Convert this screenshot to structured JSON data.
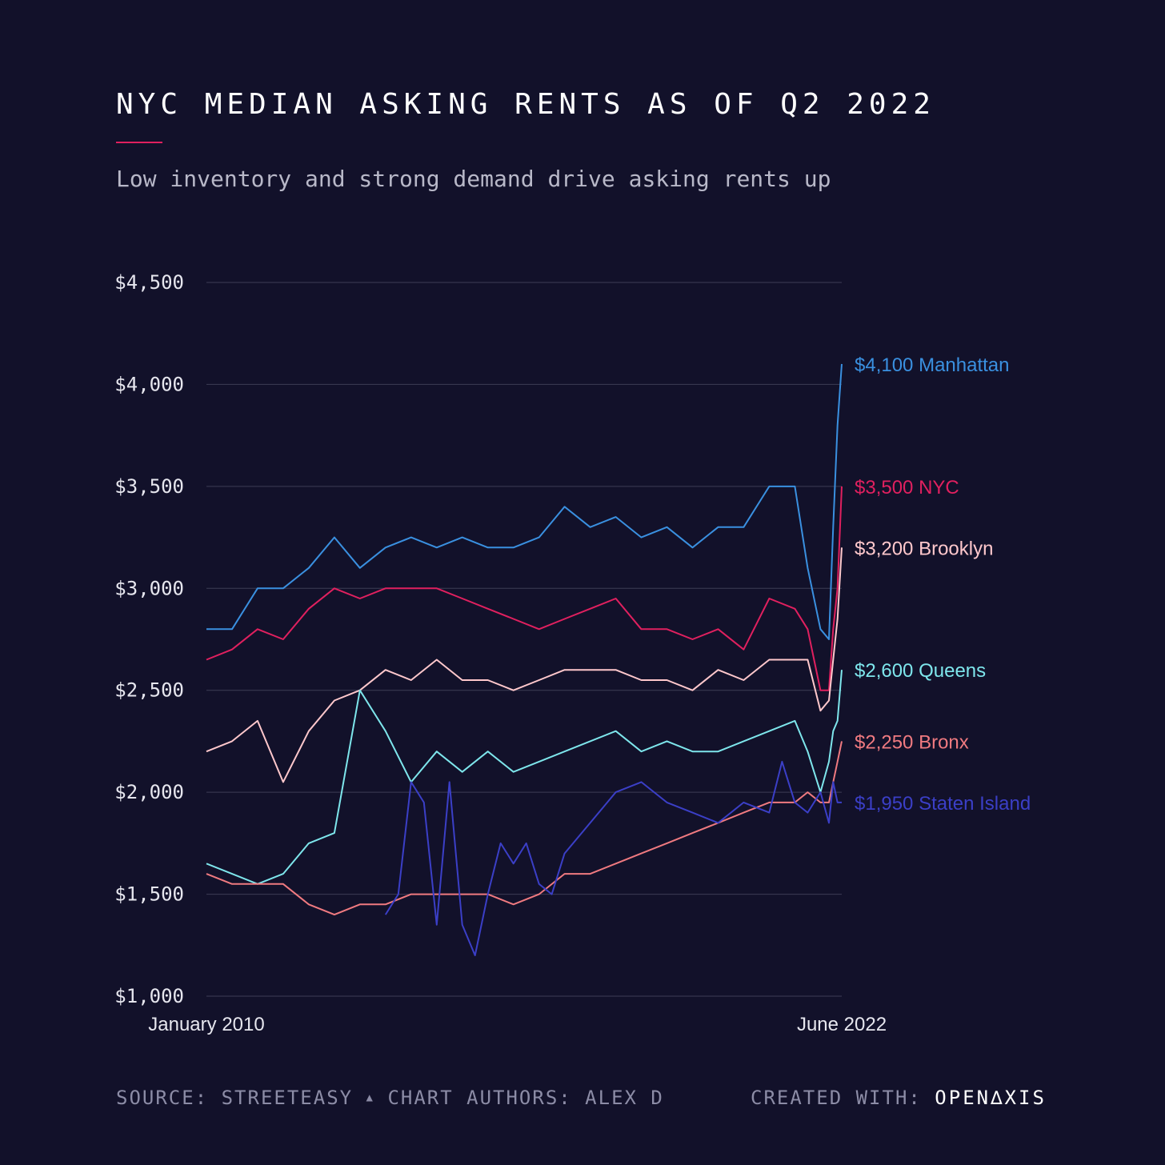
{
  "header": {
    "title": "NYC MEDIAN ASKING RENTS AS OF Q2 2022",
    "subtitle": "Low inventory and strong demand drive asking rents up"
  },
  "footer": {
    "source": "SOURCE: STREETEASY",
    "separator": "▲",
    "authors": "CHART AUTHORS: ALEX D",
    "created_label": "CREATED WITH:",
    "brand": "OPEN∆XIS"
  },
  "colors": {
    "background": "#12112a",
    "grid": "#3d3d55",
    "tick_text": "#e6e6ee",
    "accent": "#e0205f"
  },
  "chart_data": {
    "type": "line",
    "x_tick_labels": [
      "January 2010",
      "June 2022"
    ],
    "x_range_months": [
      "2010-01",
      "2022-06"
    ],
    "ylim": [
      1000,
      4500
    ],
    "yticks": [
      1000,
      1500,
      2000,
      2500,
      3000,
      3500,
      4000,
      4500
    ],
    "ytick_labels": [
      "$1,000",
      "$1,500",
      "$2,000",
      "$2,500",
      "$3,000",
      "$3,500",
      "$4,000",
      "$4,500"
    ],
    "grid": "horizontal",
    "legend": "end-of-line labels",
    "series": [
      {
        "name": "Manhattan",
        "end_label": "$4,100 Manhattan",
        "color": "#3a90e0",
        "points": [
          [
            "2010-01",
            2800
          ],
          [
            "2010-07",
            2800
          ],
          [
            "2011-01",
            3000
          ],
          [
            "2011-07",
            3000
          ],
          [
            "2012-01",
            3100
          ],
          [
            "2012-07",
            3250
          ],
          [
            "2013-01",
            3100
          ],
          [
            "2013-07",
            3200
          ],
          [
            "2014-01",
            3250
          ],
          [
            "2014-07",
            3200
          ],
          [
            "2015-01",
            3250
          ],
          [
            "2015-07",
            3200
          ],
          [
            "2016-01",
            3200
          ],
          [
            "2016-07",
            3250
          ],
          [
            "2017-01",
            3400
          ],
          [
            "2017-07",
            3300
          ],
          [
            "2018-01",
            3350
          ],
          [
            "2018-07",
            3250
          ],
          [
            "2019-01",
            3300
          ],
          [
            "2019-07",
            3200
          ],
          [
            "2020-01",
            3300
          ],
          [
            "2020-07",
            3300
          ],
          [
            "2021-01",
            3500
          ],
          [
            "2021-07",
            3500
          ],
          [
            "2021-10",
            3100
          ],
          [
            "2022-01",
            2800
          ],
          [
            "2022-03",
            2750
          ],
          [
            "2022-04",
            3300
          ],
          [
            "2022-05",
            3800
          ],
          [
            "2022-06",
            4100
          ]
        ]
      },
      {
        "name": "NYC",
        "end_label": "$3,500 NYC",
        "color": "#e0205f",
        "points": [
          [
            "2010-01",
            2650
          ],
          [
            "2010-07",
            2700
          ],
          [
            "2011-01",
            2800
          ],
          [
            "2011-07",
            2750
          ],
          [
            "2012-01",
            2900
          ],
          [
            "2012-07",
            3000
          ],
          [
            "2013-01",
            2950
          ],
          [
            "2013-07",
            3000
          ],
          [
            "2014-01",
            3000
          ],
          [
            "2014-07",
            3000
          ],
          [
            "2015-01",
            2950
          ],
          [
            "2015-07",
            2900
          ],
          [
            "2016-01",
            2850
          ],
          [
            "2016-07",
            2800
          ],
          [
            "2017-01",
            2850
          ],
          [
            "2017-07",
            2900
          ],
          [
            "2018-01",
            2950
          ],
          [
            "2018-07",
            2800
          ],
          [
            "2019-01",
            2800
          ],
          [
            "2019-07",
            2750
          ],
          [
            "2020-01",
            2800
          ],
          [
            "2020-07",
            2700
          ],
          [
            "2021-01",
            2950
          ],
          [
            "2021-07",
            2900
          ],
          [
            "2021-10",
            2800
          ],
          [
            "2022-01",
            2500
          ],
          [
            "2022-03",
            2500
          ],
          [
            "2022-04",
            2800
          ],
          [
            "2022-05",
            3000
          ],
          [
            "2022-06",
            3500
          ]
        ]
      },
      {
        "name": "Brooklyn",
        "end_label": "$3,200 Brooklyn",
        "color": "#ffc8cc",
        "points": [
          [
            "2010-01",
            2200
          ],
          [
            "2010-07",
            2250
          ],
          [
            "2011-01",
            2350
          ],
          [
            "2011-07",
            2050
          ],
          [
            "2012-01",
            2300
          ],
          [
            "2012-07",
            2450
          ],
          [
            "2013-01",
            2500
          ],
          [
            "2013-07",
            2600
          ],
          [
            "2014-01",
            2550
          ],
          [
            "2014-07",
            2650
          ],
          [
            "2015-01",
            2550
          ],
          [
            "2015-07",
            2550
          ],
          [
            "2016-01",
            2500
          ],
          [
            "2016-07",
            2550
          ],
          [
            "2017-01",
            2600
          ],
          [
            "2017-07",
            2600
          ],
          [
            "2018-01",
            2600
          ],
          [
            "2018-07",
            2550
          ],
          [
            "2019-01",
            2550
          ],
          [
            "2019-07",
            2500
          ],
          [
            "2020-01",
            2600
          ],
          [
            "2020-07",
            2550
          ],
          [
            "2021-01",
            2650
          ],
          [
            "2021-07",
            2650
          ],
          [
            "2021-10",
            2650
          ],
          [
            "2022-01",
            2400
          ],
          [
            "2022-03",
            2450
          ],
          [
            "2022-04",
            2650
          ],
          [
            "2022-05",
            2850
          ],
          [
            "2022-06",
            3200
          ]
        ]
      },
      {
        "name": "Queens",
        "end_label": "$2,600 Queens",
        "color": "#7ee6ec",
        "points": [
          [
            "2010-01",
            1650
          ],
          [
            "2010-07",
            1600
          ],
          [
            "2011-01",
            1550
          ],
          [
            "2011-07",
            1600
          ],
          [
            "2012-01",
            1750
          ],
          [
            "2012-07",
            1800
          ],
          [
            "2013-01",
            2500
          ],
          [
            "2013-07",
            2300
          ],
          [
            "2014-01",
            2050
          ],
          [
            "2014-07",
            2200
          ],
          [
            "2015-01",
            2100
          ],
          [
            "2015-07",
            2200
          ],
          [
            "2016-01",
            2100
          ],
          [
            "2016-07",
            2150
          ],
          [
            "2017-01",
            2200
          ],
          [
            "2017-07",
            2250
          ],
          [
            "2018-01",
            2300
          ],
          [
            "2018-07",
            2200
          ],
          [
            "2019-01",
            2250
          ],
          [
            "2019-07",
            2200
          ],
          [
            "2020-01",
            2200
          ],
          [
            "2020-07",
            2250
          ],
          [
            "2021-01",
            2300
          ],
          [
            "2021-07",
            2350
          ],
          [
            "2021-10",
            2200
          ],
          [
            "2022-01",
            2000
          ],
          [
            "2022-03",
            2150
          ],
          [
            "2022-04",
            2300
          ],
          [
            "2022-05",
            2350
          ],
          [
            "2022-06",
            2600
          ]
        ]
      },
      {
        "name": "Bronx",
        "end_label": "$2,250 Bronx",
        "color": "#f07a80",
        "points": [
          [
            "2010-01",
            1600
          ],
          [
            "2010-07",
            1550
          ],
          [
            "2011-01",
            1550
          ],
          [
            "2011-07",
            1550
          ],
          [
            "2012-01",
            1450
          ],
          [
            "2012-07",
            1400
          ],
          [
            "2013-01",
            1450
          ],
          [
            "2013-07",
            1450
          ],
          [
            "2014-01",
            1500
          ],
          [
            "2014-07",
            1500
          ],
          [
            "2015-01",
            1500
          ],
          [
            "2015-07",
            1500
          ],
          [
            "2016-01",
            1450
          ],
          [
            "2016-07",
            1500
          ],
          [
            "2017-01",
            1600
          ],
          [
            "2017-07",
            1600
          ],
          [
            "2018-01",
            1650
          ],
          [
            "2018-07",
            1700
          ],
          [
            "2019-01",
            1750
          ],
          [
            "2019-07",
            1800
          ],
          [
            "2020-01",
            1850
          ],
          [
            "2020-07",
            1900
          ],
          [
            "2021-01",
            1950
          ],
          [
            "2021-07",
            1950
          ],
          [
            "2021-10",
            2000
          ],
          [
            "2022-01",
            1950
          ],
          [
            "2022-03",
            1950
          ],
          [
            "2022-04",
            2050
          ],
          [
            "2022-05",
            2150
          ],
          [
            "2022-06",
            2250
          ]
        ]
      },
      {
        "name": "Staten Island",
        "end_label": "$1,950 Staten Island",
        "color": "#3b3fc7",
        "points": [
          [
            "2013-07",
            1400
          ],
          [
            "2013-10",
            1500
          ],
          [
            "2014-01",
            2050
          ],
          [
            "2014-04",
            1950
          ],
          [
            "2014-07",
            1350
          ],
          [
            "2014-10",
            2050
          ],
          [
            "2015-01",
            1350
          ],
          [
            "2015-04",
            1200
          ],
          [
            "2015-07",
            1500
          ],
          [
            "2015-10",
            1750
          ],
          [
            "2016-01",
            1650
          ],
          [
            "2016-04",
            1750
          ],
          [
            "2016-07",
            1550
          ],
          [
            "2016-10",
            1500
          ],
          [
            "2017-01",
            1700
          ],
          [
            "2017-07",
            1850
          ],
          [
            "2018-01",
            2000
          ],
          [
            "2018-07",
            2050
          ],
          [
            "2019-01",
            1950
          ],
          [
            "2019-07",
            1900
          ],
          [
            "2020-01",
            1850
          ],
          [
            "2020-07",
            1950
          ],
          [
            "2021-01",
            1900
          ],
          [
            "2021-04",
            2150
          ],
          [
            "2021-07",
            1950
          ],
          [
            "2021-10",
            1900
          ],
          [
            "2022-01",
            2000
          ],
          [
            "2022-03",
            1850
          ],
          [
            "2022-04",
            2050
          ],
          [
            "2022-05",
            1950
          ],
          [
            "2022-06",
            1950
          ]
        ]
      }
    ]
  }
}
